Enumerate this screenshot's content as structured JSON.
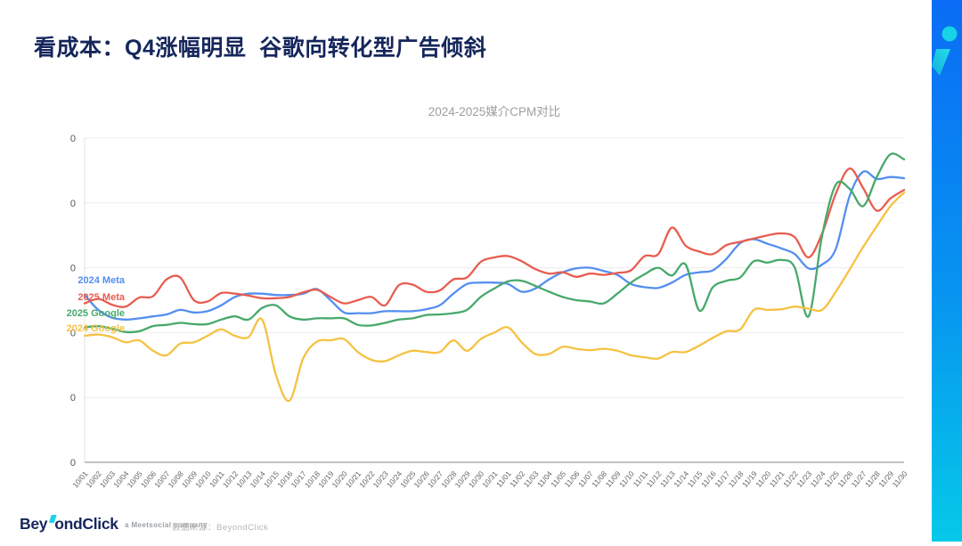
{
  "slide": {
    "title": "看成本：Q4涨幅明显  谷歌向转化型广告倾斜",
    "title_color": "#15265b",
    "accent_bar_gradient": [
      "#0a6cf5",
      "#06c9e8"
    ],
    "logo_mark_color": "#1fd1e3"
  },
  "chart_data": {
    "type": "line",
    "title": "2024-2025媒介CPM对比",
    "xlabel": "",
    "ylabel": "",
    "grid": true,
    "smooth": true,
    "legend_position": "left-inline",
    "ylim": [
      0,
      5
    ],
    "y_tick_labels": [
      "0",
      "0",
      "0",
      "0",
      "0",
      "0"
    ],
    "values_note": "y-axis tick labels are masked as 0; series values estimated in gridline units",
    "x": [
      "10/01",
      "10/02",
      "10/03",
      "10/04",
      "10/05",
      "10/06",
      "10/07",
      "10/08",
      "10/09",
      "10/10",
      "10/11",
      "10/12",
      "10/13",
      "10/14",
      "10/15",
      "10/16",
      "10/17",
      "10/18",
      "10/19",
      "10/20",
      "10/21",
      "10/22",
      "10/23",
      "10/24",
      "10/25",
      "10/26",
      "10/27",
      "10/28",
      "10/29",
      "10/30",
      "10/31",
      "11/01",
      "11/02",
      "11/03",
      "11/04",
      "11/05",
      "11/06",
      "11/07",
      "11/08",
      "11/09",
      "11/10",
      "11/11",
      "11/12",
      "11/13",
      "11/14",
      "11/15",
      "11/16",
      "11/17",
      "11/18",
      "11/19",
      "11/20",
      "11/21",
      "11/22",
      "11/23",
      "11/24",
      "11/25",
      "11/26",
      "11/27",
      "11/28",
      "11/29",
      "11/30"
    ],
    "series": [
      {
        "name": "2024 Meta",
        "color": "#548ef0",
        "values": [
          2.58,
          2.35,
          2.23,
          2.2,
          2.22,
          2.25,
          2.28,
          2.35,
          2.31,
          2.33,
          2.42,
          2.55,
          2.6,
          2.6,
          2.58,
          2.58,
          2.6,
          2.67,
          2.5,
          2.31,
          2.3,
          2.3,
          2.33,
          2.33,
          2.33,
          2.36,
          2.42,
          2.6,
          2.75,
          2.77,
          2.77,
          2.75,
          2.63,
          2.68,
          2.82,
          2.93,
          2.99,
          3.0,
          2.95,
          2.89,
          2.75,
          2.7,
          2.69,
          2.77,
          2.89,
          2.93,
          2.96,
          3.14,
          3.38,
          3.44,
          3.37,
          3.3,
          3.21,
          2.99,
          3.05,
          3.29,
          4.1,
          4.48,
          4.37,
          4.4,
          4.38
        ]
      },
      {
        "name": "2025 Meta",
        "color": "#e85d50",
        "values": [
          2.45,
          2.52,
          2.43,
          2.4,
          2.54,
          2.56,
          2.82,
          2.85,
          2.5,
          2.48,
          2.61,
          2.6,
          2.57,
          2.53,
          2.53,
          2.55,
          2.62,
          2.66,
          2.55,
          2.45,
          2.5,
          2.55,
          2.42,
          2.73,
          2.74,
          2.63,
          2.65,
          2.82,
          2.85,
          3.09,
          3.16,
          3.18,
          3.1,
          2.98,
          2.91,
          2.93,
          2.86,
          2.91,
          2.89,
          2.92,
          2.96,
          3.18,
          3.21,
          3.62,
          3.34,
          3.25,
          3.21,
          3.35,
          3.4,
          3.45,
          3.5,
          3.53,
          3.47,
          3.16,
          3.53,
          4.14,
          4.53,
          4.23,
          3.88,
          4.07,
          4.2
        ]
      },
      {
        "name": "2025 Google",
        "color": "#47a96b",
        "values": [
          2.08,
          2.1,
          2.06,
          2.01,
          2.02,
          2.1,
          2.12,
          2.15,
          2.13,
          2.13,
          2.2,
          2.25,
          2.2,
          2.38,
          2.42,
          2.25,
          2.2,
          2.22,
          2.22,
          2.22,
          2.12,
          2.11,
          2.15,
          2.2,
          2.22,
          2.27,
          2.28,
          2.3,
          2.35,
          2.55,
          2.68,
          2.79,
          2.8,
          2.72,
          2.63,
          2.55,
          2.5,
          2.48,
          2.45,
          2.6,
          2.77,
          2.9,
          3.0,
          2.88,
          3.05,
          2.34,
          2.7,
          2.8,
          2.85,
          3.1,
          3.08,
          3.12,
          3.0,
          2.25,
          3.5,
          4.28,
          4.22,
          3.95,
          4.4,
          4.75,
          4.67
        ]
      },
      {
        "name": "2024 Google",
        "color": "#f5c242",
        "values": [
          1.95,
          1.97,
          1.93,
          1.85,
          1.88,
          1.72,
          1.65,
          1.83,
          1.85,
          1.95,
          2.05,
          1.95,
          1.93,
          2.2,
          1.35,
          0.95,
          1.6,
          1.86,
          1.88,
          1.9,
          1.7,
          1.58,
          1.56,
          1.65,
          1.72,
          1.7,
          1.7,
          1.88,
          1.72,
          1.9,
          2.0,
          2.08,
          1.85,
          1.67,
          1.67,
          1.78,
          1.75,
          1.73,
          1.75,
          1.72,
          1.65,
          1.62,
          1.6,
          1.7,
          1.7,
          1.8,
          1.92,
          2.02,
          2.05,
          2.35,
          2.35,
          2.36,
          2.4,
          2.37,
          2.35,
          2.63,
          2.97,
          3.32,
          3.64,
          3.95,
          4.16
        ]
      }
    ]
  },
  "footer": {
    "logo_part1": "Bey",
    "logo_part2": "ondClick",
    "tagline": "a Meetsocial company",
    "source": "数据来源：BeyondClick"
  }
}
